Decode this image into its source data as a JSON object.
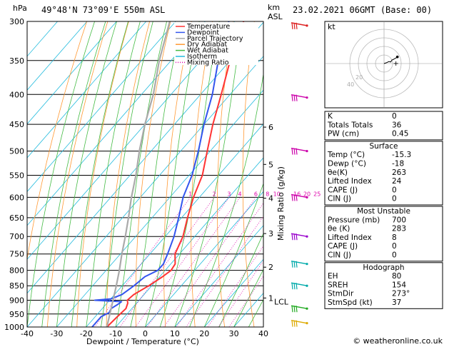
{
  "header": {
    "location": "49°48'N  73°09'E  550m  ASL",
    "datetime": "23.02.2021  06GMT  (Base: 00)"
  },
  "axes": {
    "pressure_unit": "hPa",
    "height_unit_top": "km",
    "height_unit_bottom": "ASL",
    "mixing_axis_label": "Mixing Ratio (g/kg)",
    "xlabel": "Dewpoint / Temperature (°C)",
    "pressure_ticks": [
      300,
      350,
      400,
      450,
      500,
      550,
      600,
      650,
      700,
      750,
      800,
      850,
      900,
      950,
      1000
    ],
    "pressure_range": [
      300,
      1000
    ],
    "temp_ticks": [
      -40,
      -30,
      -20,
      -10,
      0,
      10,
      20,
      30,
      40
    ],
    "temp_range": [
      -40,
      40
    ],
    "skew_deg_per_log": 75,
    "km_labels": [
      {
        "km": "6",
        "p": 455
      },
      {
        "km": "5",
        "p": 527
      },
      {
        "km": "4",
        "p": 602
      },
      {
        "km": "3",
        "p": 692
      },
      {
        "km": "2",
        "p": 790
      },
      {
        "km": "1",
        "p": 892
      }
    ],
    "lcl_label": "LCL",
    "lcl_p": 905,
    "mixing_ratios": [
      "1",
      "2",
      "3",
      "4",
      "6",
      "8",
      "10",
      "16",
      "20",
      "25"
    ]
  },
  "legend": {
    "placement": "top-left",
    "items": [
      {
        "label": "Temperature",
        "color": "#ff3333",
        "style": "solid"
      },
      {
        "label": "Dewpoint",
        "color": "#3355ee",
        "style": "solid"
      },
      {
        "label": "Parcel Trajectory",
        "color": "#aaaaaa",
        "style": "solid"
      },
      {
        "label": "Dry Adiabat",
        "color": "#ff9933",
        "style": "solid"
      },
      {
        "label": "Wet Adiabat",
        "color": "#44bb44",
        "style": "solid"
      },
      {
        "label": "Isotherm",
        "color": "#22bbdd",
        "style": "solid"
      },
      {
        "label": "Mixing Ratio",
        "color": "#dd00aa",
        "style": "dotted"
      }
    ]
  },
  "chart_data": {
    "type": "line",
    "title": "",
    "xlabel": "Dewpoint / Temperature (°C)",
    "ylabel": "hPa",
    "series": [
      {
        "name": "Temperature",
        "color": "#ff3333",
        "points": [
          [
            1000,
            -13
          ],
          [
            960,
            -12.5
          ],
          [
            930,
            -12
          ],
          [
            910,
            -13
          ],
          [
            900,
            -14
          ],
          [
            880,
            -13.5
          ],
          [
            850,
            -11
          ],
          [
            820,
            -9
          ],
          [
            800,
            -8
          ],
          [
            780,
            -8.5
          ],
          [
            750,
            -11.5
          ],
          [
            700,
            -14
          ],
          [
            650,
            -18
          ],
          [
            600,
            -22
          ],
          [
            550,
            -25.5
          ],
          [
            500,
            -31
          ],
          [
            450,
            -37
          ],
          [
            400,
            -43
          ],
          [
            350,
            -50
          ],
          [
            300,
            -57
          ]
        ]
      },
      {
        "name": "Dewpoint",
        "color": "#3355ee",
        "points": [
          [
            1000,
            -18
          ],
          [
            960,
            -18
          ],
          [
            945,
            -16.5
          ],
          [
            930,
            -17
          ],
          [
            915,
            -16
          ],
          [
            905,
            -15.5
          ],
          [
            900,
            -25
          ],
          [
            895,
            -20
          ],
          [
            880,
            -17.5
          ],
          [
            850,
            -16
          ],
          [
            820,
            -15
          ],
          [
            800,
            -12.5
          ],
          [
            780,
            -12.5
          ],
          [
            750,
            -14
          ],
          [
            700,
            -17
          ],
          [
            650,
            -21
          ],
          [
            600,
            -25.5
          ],
          [
            550,
            -29
          ],
          [
            500,
            -34
          ],
          [
            450,
            -40
          ],
          [
            400,
            -46
          ],
          [
            350,
            -54
          ],
          [
            300,
            -62
          ]
        ]
      },
      {
        "name": "Parcel Trajectory",
        "color": "#aaaaaa",
        "points": [
          [
            1000,
            -13
          ],
          [
            905,
            -18.5
          ],
          [
            850,
            -22
          ],
          [
            800,
            -25.5
          ],
          [
            750,
            -29.5
          ],
          [
            700,
            -33.5
          ],
          [
            650,
            -38
          ],
          [
            600,
            -43
          ],
          [
            550,
            -48
          ],
          [
            500,
            -54
          ],
          [
            450,
            -60
          ],
          [
            400,
            -66
          ],
          [
            350,
            -74
          ],
          [
            300,
            -82
          ]
        ]
      }
    ]
  },
  "wind_barbs": [
    {
      "p": 305,
      "color": "#dd2222"
    },
    {
      "p": 405,
      "color": "#cc00aa"
    },
    {
      "p": 500,
      "color": "#cc00aa"
    },
    {
      "p": 600,
      "color": "#cc00aa"
    },
    {
      "p": 700,
      "color": "#9900cc"
    },
    {
      "p": 780,
      "color": "#00aaaa"
    },
    {
      "p": 850,
      "color": "#00aaaa"
    },
    {
      "p": 930,
      "color": "#22aa22"
    },
    {
      "p": 985,
      "color": "#ddaa00"
    }
  ],
  "hodograph": {
    "label": "kt",
    "rings": 4,
    "points": [
      [
        0,
        0
      ],
      [
        6,
        2
      ],
      [
        12,
        5
      ],
      [
        17,
        4
      ],
      [
        20,
        9
      ],
      [
        23,
        10
      ],
      [
        26,
        12
      ],
      [
        30,
        14
      ],
      [
        34,
        17
      ]
    ],
    "storm_motion": [
      30,
      2
    ],
    "ring_labels": [
      "20",
      "40"
    ]
  },
  "indices": {
    "rows": [
      {
        "label": "K",
        "value": "0"
      },
      {
        "label": "Totals Totals",
        "value": "36"
      },
      {
        "label": "PW (cm)",
        "value": "0.45"
      }
    ]
  },
  "surface": {
    "title": "Surface",
    "rows": [
      {
        "label": "Temp (°C)",
        "value": "-15.3"
      },
      {
        "label": "Dewp (°C)",
        "value": "-18"
      },
      {
        "label": "θe(K)",
        "value": "263"
      },
      {
        "label": "Lifted Index",
        "value": "24"
      },
      {
        "label": "CAPE (J)",
        "value": "0"
      },
      {
        "label": "CIN (J)",
        "value": "0"
      }
    ]
  },
  "most_unstable": {
    "title": "Most Unstable",
    "rows": [
      {
        "label": "Pressure (mb)",
        "value": "700"
      },
      {
        "label": "θe (K)",
        "value": "283"
      },
      {
        "label": "Lifted Index",
        "value": "8"
      },
      {
        "label": "CAPE (J)",
        "value": "0"
      },
      {
        "label": "CIN (J)",
        "value": "0"
      }
    ]
  },
  "hodograph_table": {
    "title": "Hodograph",
    "rows": [
      {
        "label": "EH",
        "value": "80"
      },
      {
        "label": "SREH",
        "value": "154"
      },
      {
        "label": "StmDir",
        "value": "273°"
      },
      {
        "label": "StmSpd (kt)",
        "value": "37"
      }
    ]
  },
  "footer": {
    "copyright": "© weatheronline.co.uk"
  }
}
